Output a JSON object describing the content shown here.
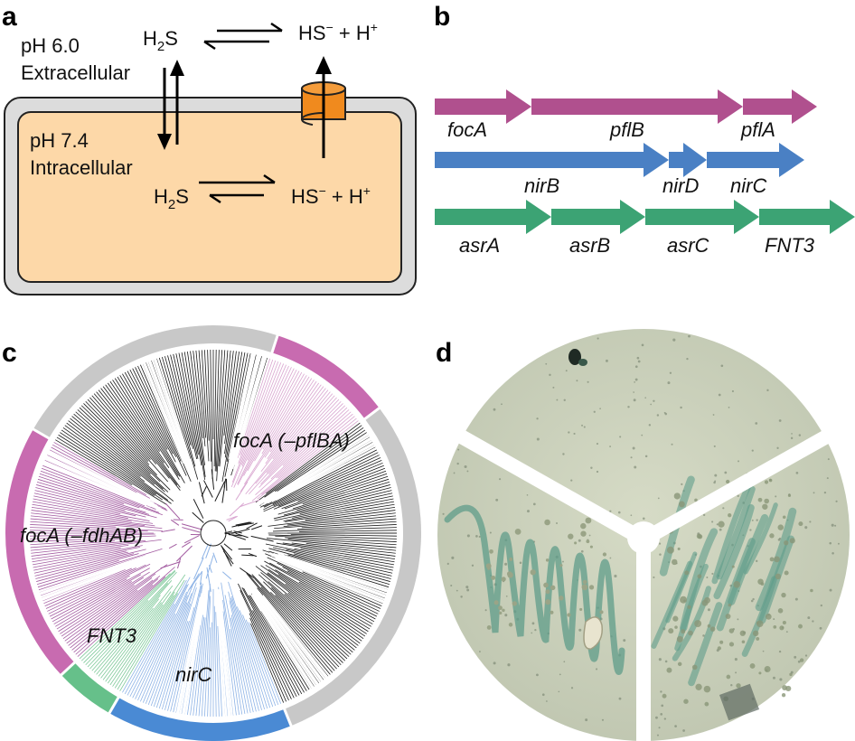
{
  "panels": {
    "a": "a",
    "b": "b",
    "c": "c",
    "d": "d"
  },
  "panel_a": {
    "extracellular_ph": "pH 6.0",
    "extracellular_label": "Extracellular",
    "intracellular_ph": "pH 7.4",
    "intracellular_label": "Intracellular",
    "h2s_main": "H",
    "h2s_sub": "2",
    "h2s_tail": "S",
    "hs_main": "HS",
    "hs_charge": "−",
    "plus": " + H",
    "h_charge": "+",
    "colors": {
      "cell": "#fdd8a8",
      "membrane": "#dcdcdc",
      "channel": "#f08a1e"
    }
  },
  "panel_b": {
    "operons": [
      {
        "color": "#b0508e",
        "genes": [
          "focA",
          "pflB",
          "pflA"
        ]
      },
      {
        "color": "#4a80c4",
        "genes": [
          "nirB",
          "nirD",
          "nirC"
        ]
      },
      {
        "color": "#3ca374",
        "genes": [
          "asrA",
          "asrB",
          "asrC",
          "FNT3"
        ]
      }
    ]
  },
  "panel_c": {
    "labels": {
      "focA_pflBA": "focA (–pflBA)",
      "focA_fdhAB": "focA (–fdhAB)",
      "FNT3": "FNT3",
      "nirC": "nirC"
    },
    "colors": {
      "focA": "#c86bb0",
      "nirC": "#4a8ad4",
      "FNT3": "#66c08a",
      "other": "#c8c8c8"
    }
  },
  "panel_d": {
    "colors": {
      "plate": "#cfd4c0",
      "streak": "#5f9c8a",
      "divider": "#ffffff"
    }
  }
}
